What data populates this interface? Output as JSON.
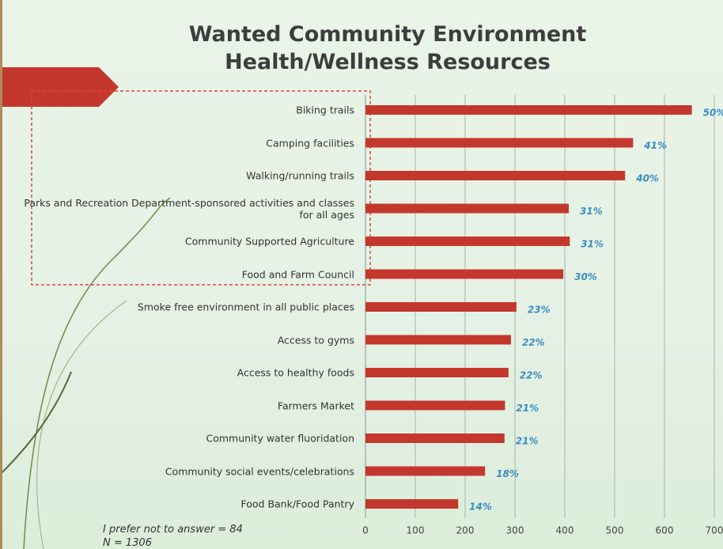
{
  "chart_data": {
    "type": "barh",
    "title": "Wanted Community Environment",
    "subtitle": "Health/Wellness Resources",
    "categories": [
      "Biking trails",
      "Camping facilities",
      "Walking/running trails",
      "Parks and Recreation Department-sponsored activities and classes for all ages",
      "Community Supported Agriculture",
      "Food and Farm Council",
      "Smoke free environment in all public places",
      "Access to gyms",
      "Access to healthy foods",
      "Farmers Market",
      "Community water fluoridation",
      "Community social events/celebrations",
      "Food Bank/Food Pantry"
    ],
    "values": [
      655,
      537,
      521,
      408,
      410,
      397,
      303,
      292,
      287,
      280,
      279,
      240,
      186
    ],
    "value_labels": [
      "50%",
      "41%",
      "40%",
      "31%",
      "31%",
      "30%",
      "23%",
      "22%",
      "22%",
      "21%",
      "21%",
      "18%",
      "14%"
    ],
    "color": "#c4372c",
    "label_color": "#3a8dc2",
    "xlim": [
      0,
      700
    ],
    "xticks": [
      0,
      100,
      200,
      300,
      400,
      500,
      600,
      700
    ],
    "grid": true,
    "annotations": [
      "I prefer not to answer = 84",
      "N = 1306"
    ]
  }
}
